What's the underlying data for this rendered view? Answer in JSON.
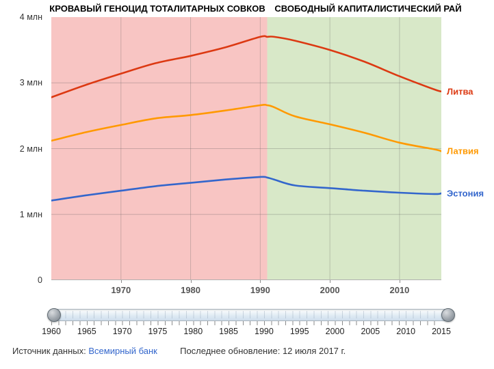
{
  "chart_data": {
    "type": "line",
    "x": [
      1960,
      1965,
      1970,
      1975,
      1980,
      1985,
      1990,
      1991,
      1992,
      1995,
      2000,
      2005,
      2010,
      2015,
      2016
    ],
    "series": [
      {
        "name": "Литва",
        "color": "#dc3912",
        "values": [
          2.78,
          2.97,
          3.14,
          3.3,
          3.41,
          3.54,
          3.7,
          3.7,
          3.7,
          3.64,
          3.5,
          3.32,
          3.1,
          2.9,
          2.87
        ]
      },
      {
        "name": "Латвия",
        "color": "#ff9900",
        "values": [
          2.12,
          2.25,
          2.36,
          2.46,
          2.51,
          2.58,
          2.66,
          2.66,
          2.63,
          2.49,
          2.37,
          2.24,
          2.09,
          1.99,
          1.96
        ]
      },
      {
        "name": "Эстония",
        "color": "#3366cc",
        "values": [
          1.21,
          1.29,
          1.36,
          1.43,
          1.48,
          1.53,
          1.57,
          1.56,
          1.53,
          1.44,
          1.4,
          1.36,
          1.33,
          1.31,
          1.32
        ]
      }
    ],
    "xlim": [
      1960,
      2016
    ],
    "ylim": [
      0,
      4
    ],
    "unit": "млн",
    "grid": true,
    "yticks": [
      {
        "value": 0,
        "label": "0"
      },
      {
        "value": 1,
        "label": "1 млн"
      },
      {
        "value": 2,
        "label": "2 млн"
      },
      {
        "value": 3,
        "label": "3 млн"
      },
      {
        "value": 4,
        "label": "4 млн"
      }
    ],
    "xticks": [
      1970,
      1980,
      1990,
      2000,
      2010
    ],
    "regions": [
      {
        "from": 1960,
        "to": 1991,
        "color": "#f8c5c3"
      },
      {
        "from": 1991,
        "to": 2016,
        "color": "#d8e8c8"
      }
    ],
    "annotations": [
      {
        "text": "КРОВАВЫЙ ГЕНОЦИД ТОТАЛИТАРНЫХ СОВКОВ",
        "region": "1960-1991"
      },
      {
        "text": "СВОБОДНЫЙ КАПИТАЛИСТИЧЕСКИЙ РАЙ",
        "region": "1991-2016"
      }
    ],
    "legend_position": "right"
  },
  "slider": {
    "min": 1960,
    "max": 2015,
    "step_labels": [
      "1960",
      "1965",
      "1970",
      "1975",
      "1980",
      "1985",
      "1990",
      "1995",
      "2000",
      "2005",
      "2010",
      "2015"
    ]
  },
  "footer": {
    "source_label": "Источник данных:",
    "source_link": "Всемирный банк",
    "updated_text": "Последнее обновление: 12 июля 2017 г.",
    "link_color": "#3366cc"
  }
}
